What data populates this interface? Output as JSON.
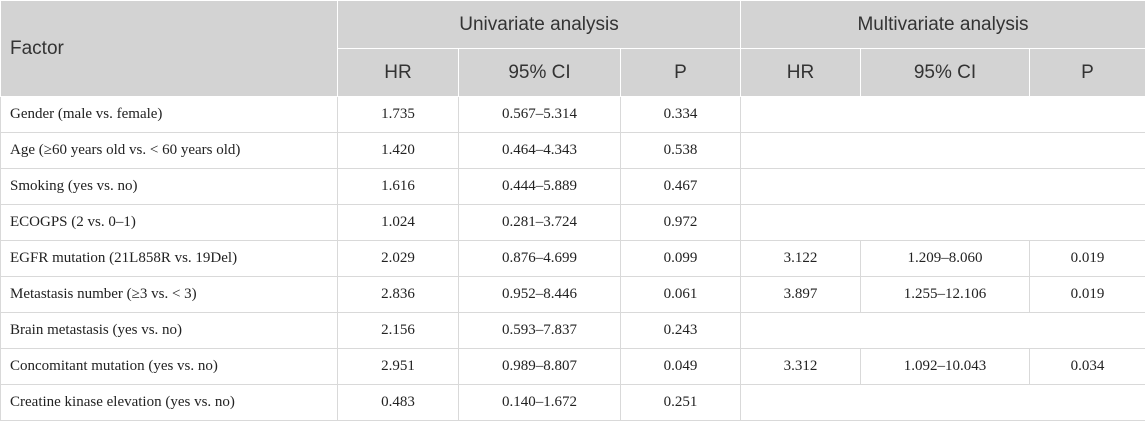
{
  "header": {
    "factor": "Factor",
    "univariate": "Univariate analysis",
    "multivariate": "Multivariate analysis",
    "sub": [
      "HR",
      "95% CI",
      "P",
      "HR",
      "95% CI",
      "P"
    ]
  },
  "rows": [
    {
      "factor": "Gender (male vs. female)",
      "u_hr": "1.735",
      "u_ci": "0.567–5.314",
      "u_p": "0.334",
      "m_hr": "",
      "m_ci": "",
      "m_p": ""
    },
    {
      "factor": "Age (≥60 years old vs. < 60 years old)",
      "u_hr": "1.420",
      "u_ci": "0.464–4.343",
      "u_p": "0.538",
      "m_hr": "",
      "m_ci": "",
      "m_p": ""
    },
    {
      "factor": "Smoking (yes vs. no)",
      "u_hr": "1.616",
      "u_ci": "0.444–5.889",
      "u_p": "0.467",
      "m_hr": "",
      "m_ci": "",
      "m_p": ""
    },
    {
      "factor": "ECOGPS (2 vs. 0–1)",
      "u_hr": "1.024",
      "u_ci": "0.281–3.724",
      "u_p": "0.972",
      "m_hr": "",
      "m_ci": "",
      "m_p": ""
    },
    {
      "factor": "EGFR mutation (21L858R vs. 19Del)",
      "u_hr": "2.029",
      "u_ci": "0.876–4.699",
      "u_p": "0.099",
      "m_hr": "3.122",
      "m_ci": "1.209–8.060",
      "m_p": "0.019"
    },
    {
      "factor": "Metastasis number (≥3 vs. < 3)",
      "u_hr": "2.836",
      "u_ci": "0.952–8.446",
      "u_p": "0.061",
      "m_hr": "3.897",
      "m_ci": "1.255–12.106",
      "m_p": "0.019"
    },
    {
      "factor": "Brain metastasis (yes vs. no)",
      "u_hr": "2.156",
      "u_ci": "0.593–7.837",
      "u_p": "0.243",
      "m_hr": "",
      "m_ci": "",
      "m_p": ""
    },
    {
      "factor": "Concomitant mutation (yes vs. no)",
      "u_hr": "2.951",
      "u_ci": "0.989–8.807",
      "u_p": "0.049",
      "m_hr": "3.312",
      "m_ci": "1.092–10.043",
      "m_p": "0.034"
    },
    {
      "factor": "Creatine kinase elevation (yes vs. no)",
      "u_hr": "0.483",
      "u_ci": "0.140–1.672",
      "u_p": "0.251",
      "m_hr": "",
      "m_ci": "",
      "m_p": ""
    }
  ]
}
